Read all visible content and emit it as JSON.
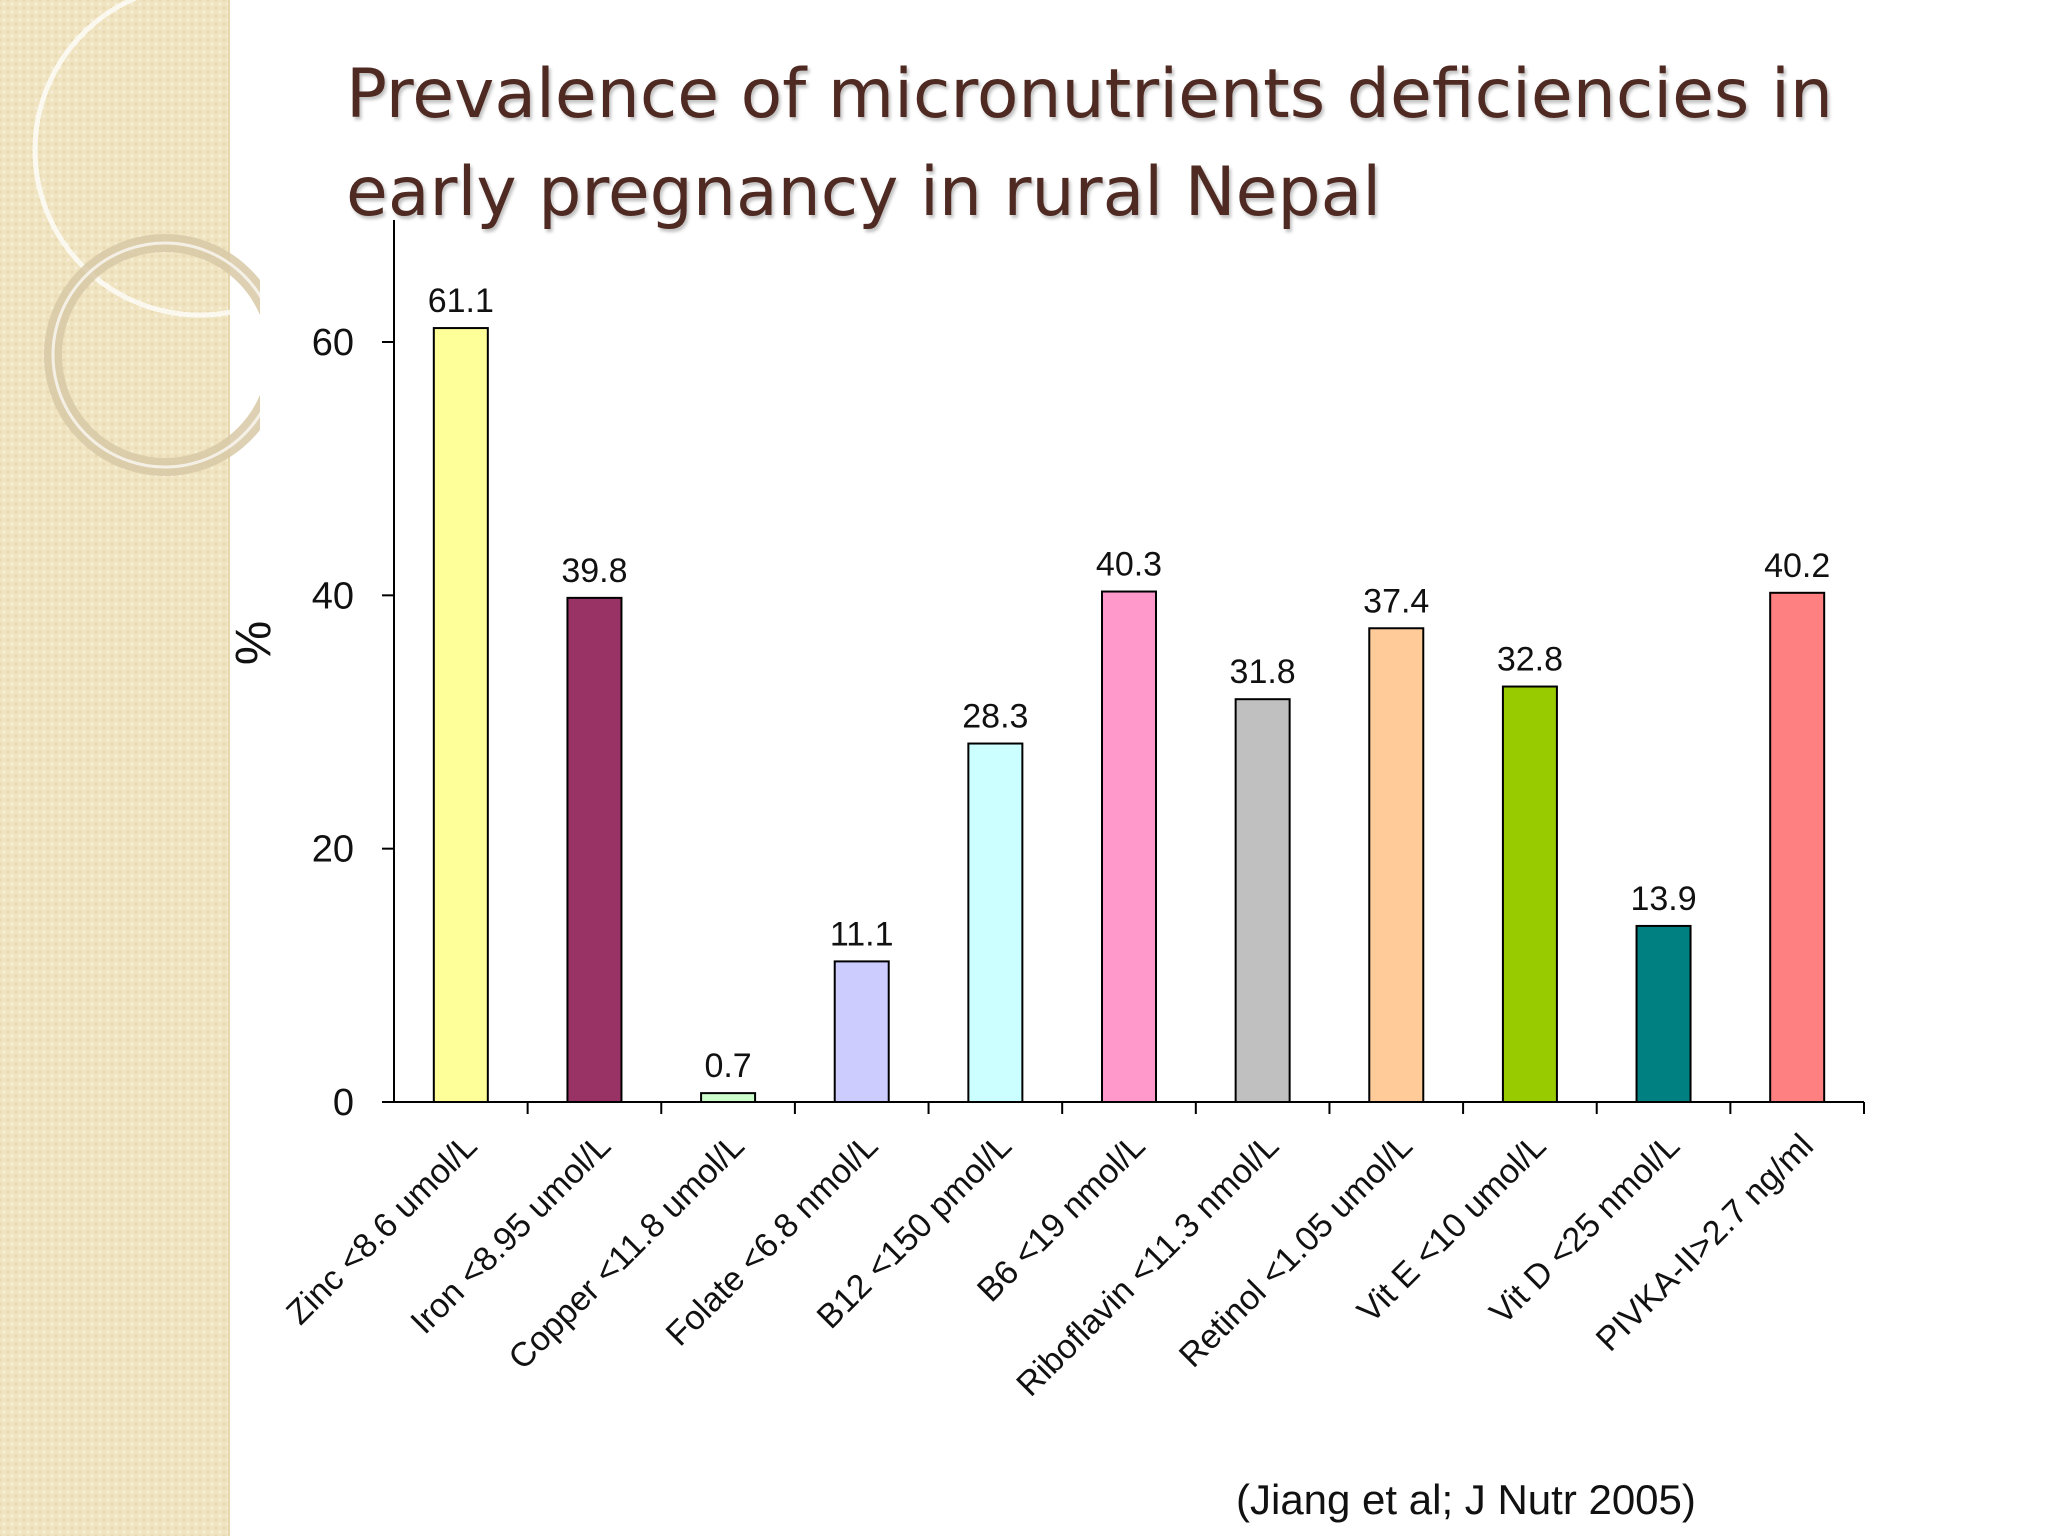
{
  "slide": {
    "title": "Prevalence of micronutrients deficiencies in early  pregnancy in rural Nepal",
    "citation": "(Jiang et al; J Nutr 2005)"
  },
  "chart_data": {
    "type": "bar",
    "ylabel": "%",
    "xlabel": "",
    "ylim": [
      0,
      60
    ],
    "yticks": [
      0,
      20,
      40,
      60
    ],
    "grid": false,
    "categories": [
      "Zinc <8.6 umol/L",
      "Iron <8.95 umol/L",
      "Copper <11.8 umol/L",
      "Folate <6.8 nmol/L",
      "B12 <150 pmol/L",
      "B6 <19 nmol/L",
      "Riboflavin <11.3 nmol/L",
      "Retinol <1.05 umol/L",
      "Vit E <10 umol/L",
      "Vit D <25 nmol/L",
      "PIVKA-II>2.7 ng/ml"
    ],
    "values": [
      61.1,
      39.8,
      0.7,
      11.1,
      28.3,
      40.3,
      31.8,
      37.4,
      32.8,
      13.9,
      40.2
    ],
    "value_labels": [
      "61.1",
      "39.8",
      "0.7",
      "11.1",
      "28.3",
      "40.3",
      "31.8",
      "37.4",
      "32.8",
      "13.9",
      "40.2"
    ],
    "colors": [
      "#ffff99",
      "#993366",
      "#ccffcc",
      "#ccccff",
      "#ccffff",
      "#ff99cc",
      "#c0c0c0",
      "#ffcc99",
      "#99cc00",
      "#008080",
      "#ff8080"
    ]
  }
}
